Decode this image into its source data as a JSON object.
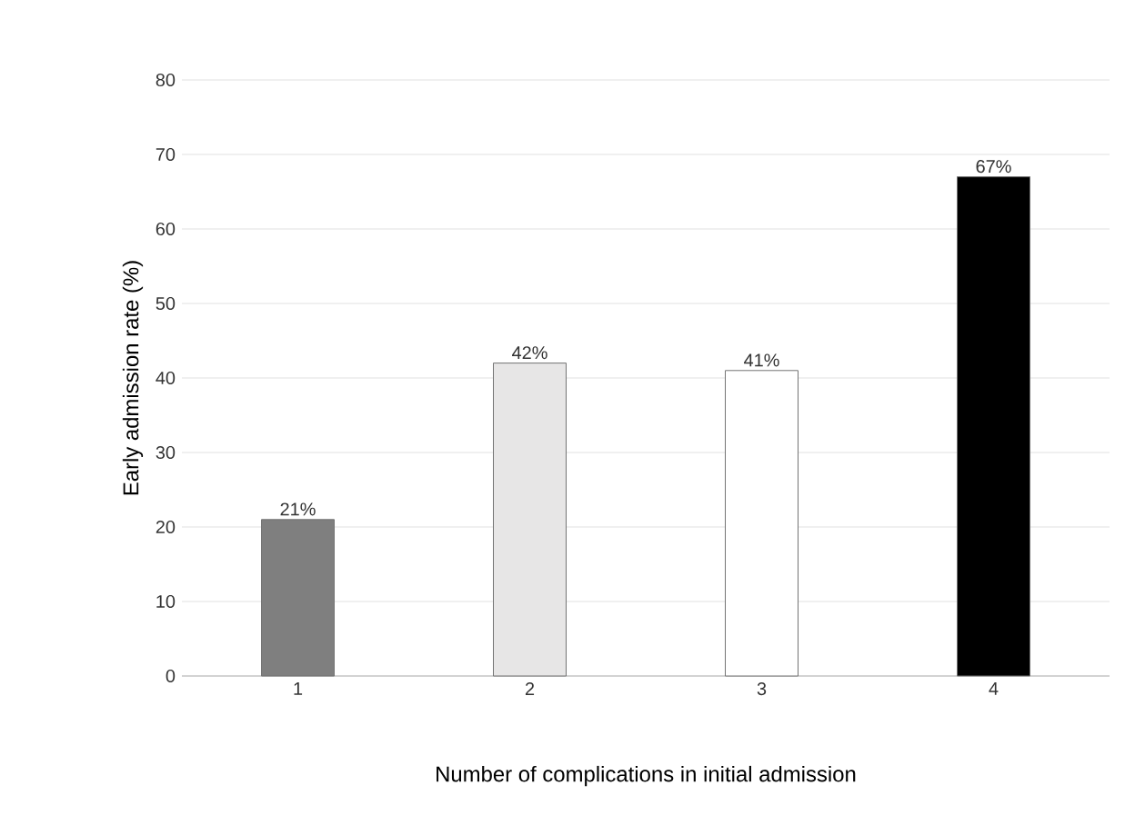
{
  "chart_data": {
    "type": "bar",
    "xlabel": "Number of complications in initial admission",
    "ylabel": "Early admission rate (%)",
    "categories": [
      "1",
      "2",
      "3",
      "4"
    ],
    "values": [
      21,
      42,
      41,
      67
    ],
    "colors": [
      "#7f7f7f",
      "#e7e6e6",
      "#ffffff",
      "#000000"
    ],
    "value_labels": [
      "21%",
      "42%",
      "41%",
      "67%"
    ],
    "ylim": [
      0,
      80
    ],
    "yticks": [
      0,
      10,
      20,
      30,
      40,
      50,
      60,
      70,
      80
    ],
    "grid": "y"
  }
}
